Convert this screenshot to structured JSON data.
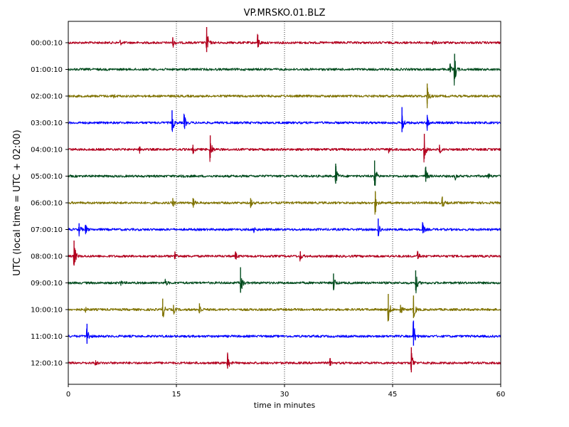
{
  "chart_data": {
    "type": "line",
    "title": "VP.MRSKO.01.BLZ",
    "xlabel": "time in minutes",
    "ylabel": "UTC (local time = UTC + 02:00)",
    "xlim": [
      0,
      60
    ],
    "xticks": [
      0,
      15,
      30,
      45,
      60
    ],
    "grid": "vertical dotted at 15, 30, 45",
    "series": [
      {
        "label": "00:00:10",
        "color": "#B2001E",
        "events": [
          [
            7.2,
            0.15
          ],
          [
            14.5,
            0.3
          ],
          [
            19.2,
            1.0
          ],
          [
            26.3,
            0.5
          ],
          [
            50.5,
            0.2
          ]
        ]
      },
      {
        "label": "01:00:10",
        "color": "#004B1D",
        "events": [
          [
            53.0,
            0.3
          ],
          [
            53.6,
            1.0
          ]
        ]
      },
      {
        "label": "02:00:10",
        "color": "#7F7200",
        "events": [
          [
            6.2,
            0.2
          ],
          [
            49.8,
            0.8
          ]
        ]
      },
      {
        "label": "03:00:10",
        "color": "#0000FF",
        "events": [
          [
            14.4,
            0.8
          ],
          [
            16.1,
            0.5
          ],
          [
            46.3,
            1.0
          ],
          [
            49.8,
            0.5
          ]
        ]
      },
      {
        "label": "04:00:10",
        "color": "#B2001E",
        "events": [
          [
            9.9,
            0.2
          ],
          [
            17.3,
            0.3
          ],
          [
            19.7,
            0.9
          ],
          [
            44.5,
            0.2
          ],
          [
            49.4,
            1.0
          ],
          [
            51.5,
            0.3
          ]
        ]
      },
      {
        "label": "05:00:10",
        "color": "#004B1D",
        "events": [
          [
            15.7,
            0.2
          ],
          [
            37.1,
            0.8
          ],
          [
            42.5,
            1.0
          ],
          [
            49.6,
            0.6
          ],
          [
            53.7,
            0.2
          ],
          [
            58.3,
            0.2
          ]
        ]
      },
      {
        "label": "06:00:10",
        "color": "#7F7200",
        "events": [
          [
            14.5,
            0.3
          ],
          [
            17.3,
            0.3
          ],
          [
            25.3,
            0.3
          ],
          [
            42.6,
            0.7
          ],
          [
            51.9,
            0.4
          ]
        ]
      },
      {
        "label": "07:00:10",
        "color": "#0000FF",
        "events": [
          [
            1.5,
            0.4
          ],
          [
            2.4,
            0.3
          ],
          [
            25.8,
            0.2
          ],
          [
            43.0,
            0.7
          ],
          [
            49.2,
            0.4
          ]
        ]
      },
      {
        "label": "08:00:10",
        "color": "#B2001E",
        "events": [
          [
            0.8,
            1.0
          ],
          [
            14.8,
            0.3
          ],
          [
            23.2,
            0.3
          ],
          [
            32.2,
            0.3
          ],
          [
            48.5,
            0.3
          ]
        ]
      },
      {
        "label": "09:00:10",
        "color": "#004B1D",
        "events": [
          [
            7.2,
            0.2
          ],
          [
            13.5,
            0.2
          ],
          [
            23.9,
            1.0
          ],
          [
            36.8,
            0.6
          ],
          [
            48.2,
            0.8
          ]
        ]
      },
      {
        "label": "10:00:10",
        "color": "#7F7200",
        "events": [
          [
            2.3,
            0.2
          ],
          [
            13.1,
            0.7
          ],
          [
            14.6,
            0.3
          ],
          [
            18.2,
            0.4
          ],
          [
            44.4,
            1.0
          ],
          [
            46.1,
            0.3
          ],
          [
            47.9,
            0.9
          ]
        ]
      },
      {
        "label": "11:00:10",
        "color": "#0000FF",
        "events": [
          [
            2.6,
            0.8
          ],
          [
            47.9,
            1.0
          ]
        ]
      },
      {
        "label": "12:00:10",
        "color": "#B2001E",
        "events": [
          [
            3.7,
            0.2
          ],
          [
            22.1,
            0.6
          ],
          [
            36.3,
            0.3
          ],
          [
            47.6,
            1.0
          ]
        ]
      }
    ]
  }
}
